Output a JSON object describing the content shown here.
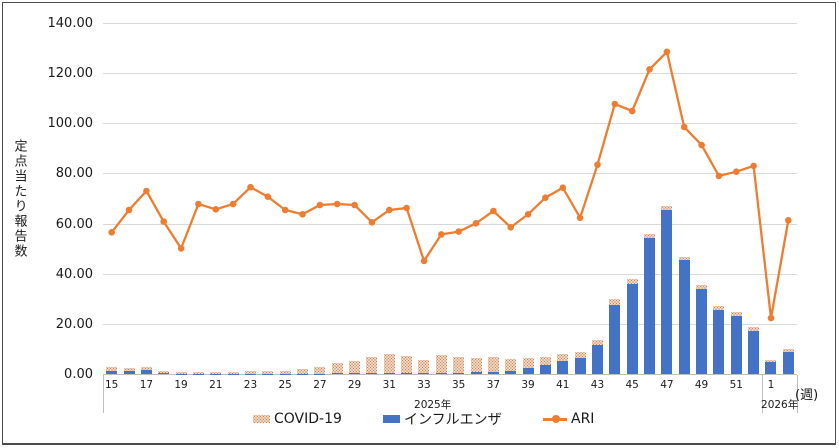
{
  "chart": {
    "legend": {
      "covid_label": "COVID-19",
      "influenza_label": "インフルエンザ",
      "ari_label": "ARI"
    }
  },
  "chart_data": {
    "type": "combo",
    "subtype": "stacked-bar-with-line",
    "title": "",
    "ylabel": "定点当たり報告数",
    "xlabel_unit": "(週)",
    "ylim": [
      0,
      140
    ],
    "y_tick_labels": [
      "140.00",
      "120.00",
      "100.00",
      "80.00",
      "60.00",
      "40.00",
      "20.00",
      "0.00"
    ],
    "grid": true,
    "legend_position": "bottom",
    "weeks": [
      "15",
      "16",
      "17",
      "18",
      "19",
      "20",
      "21",
      "22",
      "23",
      "24",
      "25",
      "26",
      "27",
      "28",
      "29",
      "30",
      "31",
      "32",
      "33",
      "34",
      "35",
      "36",
      "37",
      "38",
      "39",
      "40",
      "41",
      "42",
      "43",
      "44",
      "45",
      "46",
      "47",
      "48",
      "49",
      "50",
      "51",
      "52",
      "1",
      "2"
    ],
    "year_groups": [
      {
        "label": "2025年",
        "from_index": 0,
        "to_index": 37
      },
      {
        "label": "2026年",
        "from_index": 38,
        "to_index": 39
      }
    ],
    "x_tick_labels": [
      {
        "index": 0,
        "label": "15"
      },
      {
        "index": 2,
        "label": "17"
      },
      {
        "index": 4,
        "label": "19"
      },
      {
        "index": 6,
        "label": "21"
      },
      {
        "index": 8,
        "label": "23"
      },
      {
        "index": 10,
        "label": "25"
      },
      {
        "index": 12,
        "label": "27"
      },
      {
        "index": 14,
        "label": "29"
      },
      {
        "index": 16,
        "label": "31"
      },
      {
        "index": 18,
        "label": "33"
      },
      {
        "index": 20,
        "label": "35"
      },
      {
        "index": 22,
        "label": "37"
      },
      {
        "index": 24,
        "label": "39"
      },
      {
        "index": 26,
        "label": "41"
      },
      {
        "index": 28,
        "label": "43"
      },
      {
        "index": 30,
        "label": "45"
      },
      {
        "index": 32,
        "label": "47"
      },
      {
        "index": 34,
        "label": "49"
      },
      {
        "index": 36,
        "label": "51"
      },
      {
        "index": 38,
        "label": "1"
      }
    ],
    "series": [
      {
        "name": "COVID-19",
        "type": "bar",
        "stack": "infections",
        "color_hex": "#C9824E",
        "fill_pattern": "dotted",
        "values": [
          1.5,
          1.2,
          1.2,
          1.0,
          0.7,
          0.7,
          0.7,
          0.7,
          1.1,
          1.0,
          1.1,
          1.7,
          2.5,
          4.0,
          5.0,
          6.3,
          7.6,
          6.6,
          5.1,
          7.1,
          6.1,
          5.5,
          5.7,
          4.8,
          4.0,
          3.4,
          2.8,
          2.2,
          2.0,
          2.4,
          2.0,
          1.5,
          1.5,
          1.5,
          1.5,
          1.5,
          1.3,
          1.4,
          0.9,
          1.3
        ]
      },
      {
        "name": "インフルエンザ",
        "type": "bar",
        "stack": "infections",
        "color_hex": "#4472C4",
        "fill_pattern": "solid",
        "values": [
          1.2,
          1.1,
          1.5,
          0.3,
          0.2,
          0.2,
          0.1,
          0.1,
          0.2,
          0.2,
          0.2,
          0.2,
          0.2,
          0.3,
          0.3,
          0.4,
          0.4,
          0.4,
          0.4,
          0.5,
          0.6,
          0.8,
          1.0,
          1.2,
          2.5,
          3.5,
          5.2,
          6.5,
          11.6,
          27.5,
          35.9,
          54.2,
          65.5,
          45.3,
          34.0,
          25.5,
          23.3,
          17.2,
          4.7,
          8.7
        ]
      },
      {
        "name": "ARI",
        "type": "line",
        "color_hex": "#ED7D31",
        "marker": "circle",
        "values": [
          56.5,
          65.4,
          73.0,
          60.8,
          50.1,
          67.8,
          65.7,
          67.8,
          74.5,
          70.7,
          65.4,
          63.7,
          67.4,
          67.8,
          67.4,
          60.5,
          65.4,
          66.2,
          45.1,
          55.7,
          56.8,
          60.1,
          65.0,
          58.5,
          63.7,
          70.3,
          74.3,
          62.3,
          83.5,
          107.7,
          104.9,
          121.5,
          128.5,
          98.5,
          91.3,
          79.0,
          80.7,
          83.0,
          22.3,
          61.3
        ]
      }
    ],
    "colors": {
      "gridline": "#D9D9D9",
      "axis_line": "#BFBFBF",
      "text": "#1a1a1a"
    }
  }
}
